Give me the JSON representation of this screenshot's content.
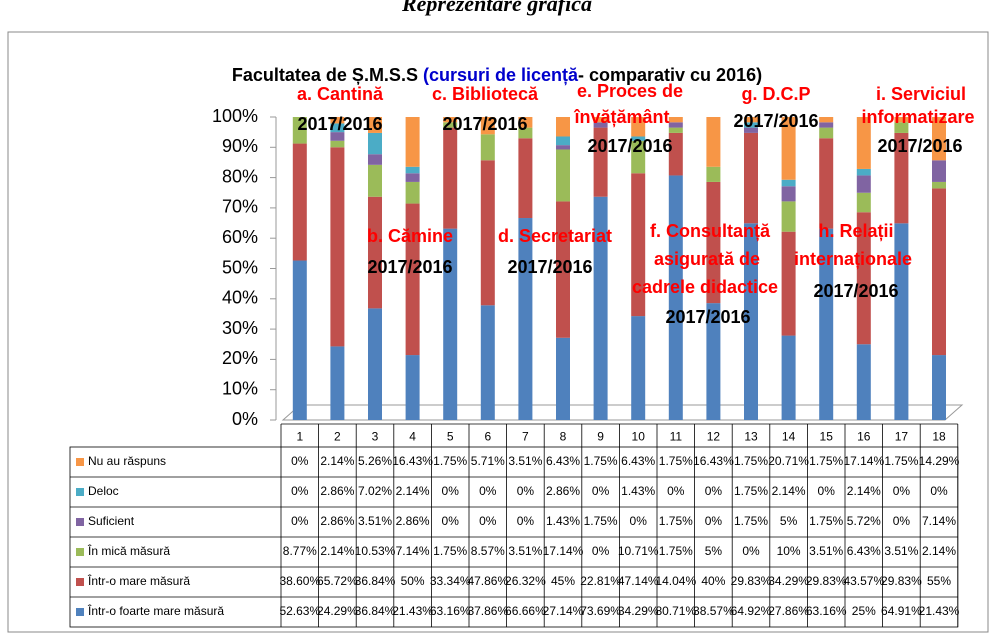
{
  "chart_data": {
    "type": "stacked_bar",
    "header": "Reprezentare grafică",
    "title": [
      "Facultatea de Ș.M.S.S ",
      "(cursuri de licență",
      "- comparativ cu 2016)"
    ],
    "title_colors": [
      "#000000",
      "#0000cc",
      "#000000"
    ],
    "categories": [
      "1",
      "2",
      "3",
      "4",
      "5",
      "6",
      "7",
      "8",
      "9",
      "10",
      "11",
      "12",
      "13",
      "14",
      "15",
      "16",
      "17",
      "18"
    ],
    "ylim": [
      0,
      100
    ],
    "yticks": [
      {
        "value": 0,
        "label": "0%"
      },
      {
        "value": 10,
        "label": "10%"
      },
      {
        "value": 20,
        "label": "20%"
      },
      {
        "value": 30,
        "label": "30%"
      },
      {
        "value": 40,
        "label": "40%"
      },
      {
        "value": 50,
        "label": "50%"
      },
      {
        "value": 60,
        "label": "60%"
      },
      {
        "value": 70,
        "label": "70%"
      },
      {
        "value": 80,
        "label": "80%"
      },
      {
        "value": 90,
        "label": "90%"
      },
      {
        "value": 100,
        "label": "100%"
      }
    ],
    "series": [
      {
        "name": "Într-o foarte mare măsură",
        "color": "#4f81bd",
        "values": [
          52.63,
          24.29,
          36.84,
          21.43,
          63.16,
          37.86,
          66.66,
          27.14,
          73.69,
          34.29,
          80.71,
          38.57,
          64.92,
          27.86,
          63.16,
          25,
          64.91,
          21.43
        ],
        "value_labels": [
          "52.63%",
          "24.29%",
          "36.84%",
          "21.43%",
          "63.16%",
          "37.86%",
          "66.66%",
          "27.14%",
          "73.69%",
          "34.29%",
          "80.71%",
          "38.57%",
          "64.92%",
          "27.86%",
          "63.16%",
          "25%",
          "64.91%",
          "21.43%"
        ]
      },
      {
        "name": "Într-o mare măsură",
        "color": "#c0504d",
        "values": [
          38.6,
          65.72,
          36.84,
          50,
          33.34,
          47.86,
          26.32,
          45,
          22.81,
          47.14,
          14.04,
          40,
          29.83,
          34.29,
          29.83,
          43.57,
          29.83,
          55
        ],
        "value_labels": [
          "38.60%",
          "65.72%",
          "36.84%",
          "50%",
          "33.34%",
          "47.86%",
          "26.32%",
          "45%",
          "22.81%",
          "47.14%",
          "14.04%",
          "40%",
          "29.83%",
          "34.29%",
          "29.83%",
          "43.57%",
          "29.83%",
          "55%"
        ]
      },
      {
        "name": "În mică măsură",
        "color": "#9bbb59",
        "values": [
          8.77,
          2.14,
          10.53,
          7.14,
          1.75,
          8.57,
          3.51,
          17.14,
          0,
          10.71,
          1.75,
          5,
          0,
          10,
          3.51,
          6.43,
          3.51,
          2.14
        ],
        "value_labels": [
          "8.77%",
          "2.14%",
          "10.53%",
          "7.14%",
          "1.75%",
          "8.57%",
          "3.51%",
          "17.14%",
          "0%",
          "10.71%",
          "1.75%",
          "5%",
          "0%",
          "10%",
          "3.51%",
          "6.43%",
          "3.51%",
          "2.14%"
        ]
      },
      {
        "name": "Suficient",
        "color": "#8064a2",
        "values": [
          0,
          2.86,
          3.51,
          2.86,
          0,
          0,
          0,
          1.43,
          1.75,
          0,
          1.75,
          0,
          1.75,
          5,
          1.75,
          5.72,
          0,
          7.14
        ],
        "value_labels": [
          "0%",
          "2.86%",
          "3.51%",
          "2.86%",
          "0%",
          "0%",
          "0%",
          "1.43%",
          "1.75%",
          "0%",
          "1.75%",
          "0%",
          "1.75%",
          "5%",
          "1.75%",
          "5.72%",
          "0%",
          "7.14%"
        ]
      },
      {
        "name": "Deloc",
        "color": "#4bacc6",
        "values": [
          0,
          2.86,
          7.02,
          2.14,
          0,
          0,
          0,
          2.86,
          0,
          1.43,
          0,
          0,
          1.75,
          2.14,
          0,
          2.14,
          0,
          0
        ],
        "value_labels": [
          "0%",
          "2.86%",
          "7.02%",
          "2.14%",
          "0%",
          "0%",
          "0%",
          "2.86%",
          "0%",
          "1.43%",
          "0%",
          "0%",
          "1.75%",
          "2.14%",
          "0%",
          "2.14%",
          "0%",
          "0%"
        ]
      },
      {
        "name": "Nu au răspuns",
        "color": "#f79646",
        "values": [
          0,
          2.14,
          5.26,
          16.43,
          1.75,
          5.71,
          3.51,
          6.43,
          1.75,
          6.43,
          1.75,
          16.43,
          1.75,
          20.71,
          1.75,
          17.14,
          1.75,
          14.29
        ],
        "value_labels": [
          "0%",
          "2.14%",
          "5.26%",
          "16.43%",
          "1.75%",
          "5.71%",
          "3.51%",
          "6.43%",
          "1.75%",
          "6.43%",
          "1.75%",
          "16.43%",
          "1.75%",
          "20.71%",
          "1.75%",
          "17.14%",
          "1.75%",
          "14.29%"
        ]
      }
    ],
    "annotations": [
      {
        "text": "a. Cantină",
        "color": "#ff0000"
      },
      {
        "text": "c. Bibliotecă",
        "color": "#ff0000"
      },
      {
        "text": "e. Proces de",
        "color": "#ff0000"
      },
      {
        "text": "învățământ",
        "color": "#ff0000"
      },
      {
        "text": "g. D.C.P",
        "color": "#ff0000"
      },
      {
        "text": "i. Serviciul",
        "color": "#ff0000"
      },
      {
        "text": "informatizare",
        "color": "#ff0000"
      },
      {
        "text": "b. Cămine",
        "color": "#ff0000"
      },
      {
        "text": "d. Secretariat",
        "color": "#ff0000"
      },
      {
        "text": "f. Consultanță",
        "color": "#ff0000"
      },
      {
        "text": "asigurată de",
        "color": "#ff0000"
      },
      {
        "text": "cadrele didactice",
        "color": "#ff0000"
      },
      {
        "text": "h. Relații",
        "color": "#ff0000"
      },
      {
        "text": "internaționale",
        "color": "#ff0000"
      },
      {
        "text": "2017/2016",
        "color": "#000000"
      },
      {
        "text": "2017/2016",
        "color": "#000000"
      },
      {
        "text": "2017/2016",
        "color": "#000000"
      },
      {
        "text": "2017/2016",
        "color": "#000000"
      },
      {
        "text": "2017/2016",
        "color": "#000000"
      },
      {
        "text": "2017/2016",
        "color": "#000000"
      },
      {
        "text": "2017/2016",
        "color": "#000000"
      },
      {
        "text": "2017/2016",
        "color": "#000000"
      },
      {
        "text": "2017/2016",
        "color": "#000000"
      }
    ]
  }
}
